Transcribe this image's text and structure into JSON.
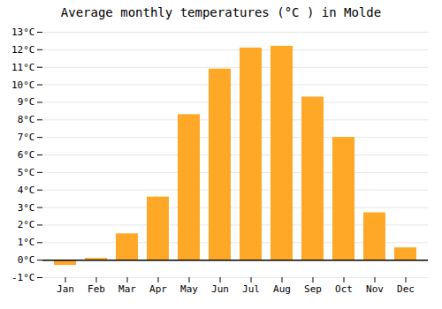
{
  "chart_data": {
    "type": "bar",
    "title": "Average monthly temperatures (°C ) in Molde",
    "categories": [
      "Jan",
      "Feb",
      "Mar",
      "Apr",
      "May",
      "Jun",
      "Jul",
      "Aug",
      "Sep",
      "Oct",
      "Nov",
      "Dec"
    ],
    "values": [
      -0.3,
      0.1,
      1.5,
      3.6,
      8.3,
      10.9,
      12.1,
      12.2,
      9.3,
      7.0,
      2.7,
      0.7
    ],
    "color": "#FFA726",
    "ylim": [
      -1,
      13
    ],
    "yticks": [
      {
        "value": -1,
        "label": "-1°C"
      },
      {
        "value": 0,
        "label": "0°C"
      },
      {
        "value": 1,
        "label": "1°C"
      },
      {
        "value": 2,
        "label": "2°C"
      },
      {
        "value": 3,
        "label": "3°C"
      },
      {
        "value": 4,
        "label": "4°C"
      },
      {
        "value": 5,
        "label": "5°C"
      },
      {
        "value": 6,
        "label": "6°C"
      },
      {
        "value": 7,
        "label": "7°C"
      },
      {
        "value": 8,
        "label": "8°C"
      },
      {
        "value": 9,
        "label": "9°C"
      },
      {
        "value": 10,
        "label": "10°C"
      },
      {
        "value": 11,
        "label": "11°C"
      },
      {
        "value": 12,
        "label": "12°C"
      },
      {
        "value": 13,
        "label": "13°C"
      }
    ],
    "grid": true
  }
}
